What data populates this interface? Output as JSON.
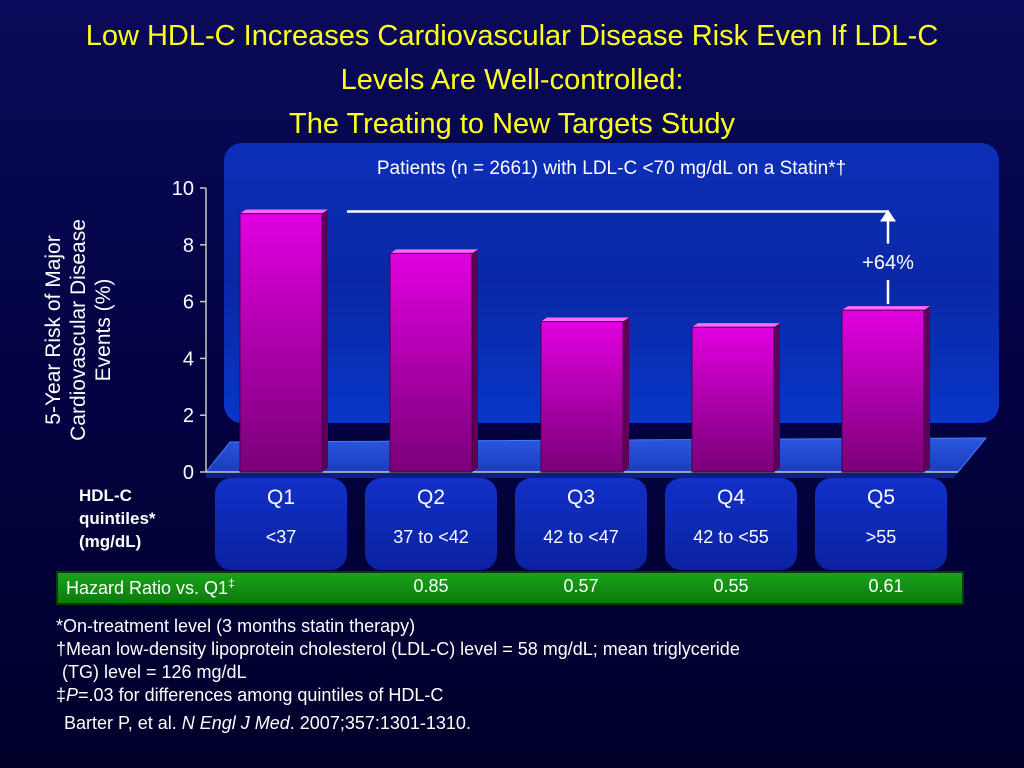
{
  "title": {
    "line1": "Low HDL-C Increases Cardiovascular Disease Risk Even If LDL-C",
    "line2": "Levels Are Well-controlled:",
    "line3": "The Treating to New Targets Study"
  },
  "chart_data": {
    "type": "bar",
    "subtitle": "Patients (n = 2661) with LDL-C <70 mg/dL on  a Statin*†",
    "ylabel": "5-Year Risk of Major Cardiovascular Disease Events (%)",
    "ylim": [
      0,
      10
    ],
    "yticks": [
      "0",
      "2",
      "4",
      "6",
      "8",
      "10"
    ],
    "categories": [
      "Q1",
      "Q2",
      "Q3",
      "Q4",
      "Q5"
    ],
    "ranges": [
      "<37",
      "37 to <42",
      "42 to <47",
      "42 to <55",
      ">55"
    ],
    "values": [
      9.1,
      7.7,
      5.3,
      5.1,
      5.7
    ],
    "bar_color": "#e000e0",
    "annotation": "+64%"
  },
  "quintile_legend": {
    "line1": "HDL-C",
    "line2": "quintiles*",
    "line3": "(mg/dL)"
  },
  "hazard": {
    "label": "Hazard Ratio vs. Q1",
    "label_sup": "‡",
    "values": [
      "0.85",
      "0.57",
      "0.55",
      "0.61"
    ]
  },
  "footnotes": {
    "n1": "*On-treatment level (3 months statin therapy)",
    "n2a": "†Mean low-density lipoprotein cholesterol (LDL-C) level = 58 mg/dL; mean triglyceride",
    "n2b": " (TG) level = 126 mg/dL",
    "n3_prefix": "‡",
    "n3_p": "P",
    "n3_rest": "=.03 for differences among quintiles of HDL-C"
  },
  "citation": {
    "authors": "Barter P, et al. ",
    "journal": "N Engl J Med",
    "rest": ". 2007;357:1301-1310."
  }
}
